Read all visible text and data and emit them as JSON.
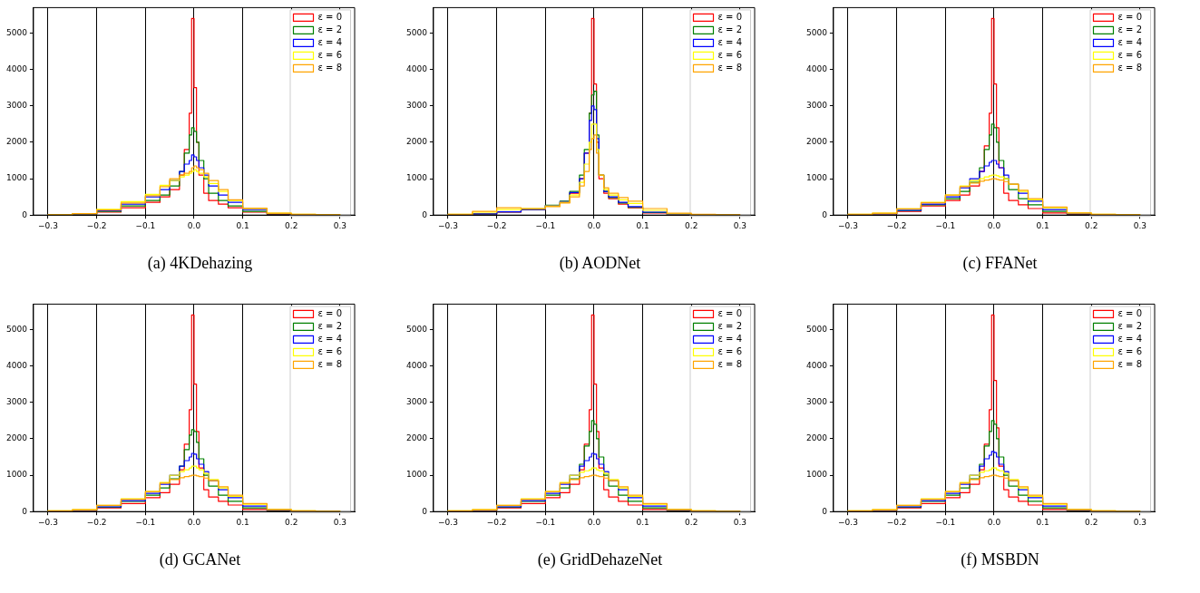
{
  "chart_data": [
    {
      "type": "histogram",
      "title": "(a)  4KDehazing",
      "bins": [
        -0.3,
        -0.25,
        -0.2,
        -0.15,
        -0.1,
        -0.07,
        -0.05,
        -0.03,
        -0.02,
        -0.01,
        -0.005,
        0,
        0.005,
        0.01,
        0.02,
        0.03,
        0.05,
        0.07,
        0.1,
        0.15,
        0.2,
        0.25,
        0.3
      ],
      "xlim": [
        -0.33,
        0.33
      ],
      "xticks": [
        {
          "value": -0.3,
          "label": "−0.3"
        },
        {
          "value": -0.2,
          "label": "−0.2"
        },
        {
          "value": -0.1,
          "label": "−0.1"
        },
        {
          "value": 0,
          "label": "0.0"
        },
        0.1,
        0.2,
        0.3
      ],
      "ylim": [
        0,
        5700
      ],
      "yticks": [
        0,
        1000,
        2000,
        3000,
        4000,
        5000
      ],
      "grid": "x",
      "legend": "top right",
      "series": [
        {
          "name": "ε = 0",
          "color": "#ff0000",
          "values": [
            10,
            30,
            80,
            200,
            350,
            500,
            700,
            1100,
            1800,
            2800,
            5400,
            3500,
            2000,
            1100,
            600,
            400,
            300,
            200,
            80,
            20,
            10,
            0
          ]
        },
        {
          "name": "ε = 2",
          "color": "#008000",
          "values": [
            10,
            30,
            100,
            250,
            400,
            550,
            800,
            1200,
            1700,
            2200,
            2400,
            2300,
            2000,
            1500,
            1000,
            600,
            400,
            250,
            100,
            30,
            10,
            0
          ]
        },
        {
          "name": "ε = 4",
          "color": "#0000ff",
          "values": [
            10,
            30,
            120,
            300,
            500,
            700,
            950,
            1200,
            1400,
            1500,
            1650,
            1600,
            1500,
            1300,
            1100,
            800,
            550,
            350,
            150,
            40,
            10,
            0
          ]
        },
        {
          "name": "ε = 6",
          "color": "#ffff00",
          "values": [
            10,
            40,
            160,
            370,
            570,
            820,
            950,
            1050,
            1100,
            1150,
            1200,
            1250,
            1200,
            1150,
            1050,
            870,
            650,
            400,
            180,
            50,
            20,
            10
          ]
        },
        {
          "name": "ε = 8",
          "color": "#ffa500",
          "values": [
            10,
            40,
            140,
            330,
            530,
            780,
            1000,
            1100,
            1150,
            1200,
            1300,
            1350,
            1300,
            1250,
            1150,
            950,
            700,
            420,
            190,
            50,
            20,
            10
          ]
        }
      ]
    },
    {
      "type": "histogram",
      "title": "(b)  AODNet",
      "bins": [
        -0.3,
        -0.25,
        -0.2,
        -0.15,
        -0.1,
        -0.07,
        -0.05,
        -0.03,
        -0.02,
        -0.01,
        -0.005,
        0,
        0.005,
        0.01,
        0.02,
        0.03,
        0.05,
        0.07,
        0.1,
        0.15,
        0.2,
        0.25,
        0.3
      ],
      "xlim": [
        -0.33,
        0.33
      ],
      "xticks": [
        {
          "value": -0.3,
          "label": "−0.3"
        },
        {
          "value": -0.2,
          "label": "−0.2"
        },
        {
          "value": -0.1,
          "label": "−0.1"
        },
        {
          "value": 0,
          "label": "0.0"
        },
        0.1,
        0.2,
        0.3
      ],
      "ylim": [
        0,
        5700
      ],
      "yticks": [
        0,
        1000,
        2000,
        3000,
        4000,
        5000
      ],
      "grid": "x",
      "legend": "top right",
      "series": [
        {
          "name": "ε = 0",
          "color": "#ff0000",
          "values": [
            10,
            30,
            80,
            150,
            250,
            350,
            600,
            1000,
            1700,
            2800,
            5400,
            3600,
            2000,
            1000,
            600,
            450,
            300,
            200,
            60,
            10,
            10,
            0
          ]
        },
        {
          "name": "ε = 2",
          "color": "#008000",
          "values": [
            10,
            30,
            90,
            160,
            270,
            380,
            650,
            1100,
            1800,
            2800,
            3300,
            3400,
            2200,
            1100,
            650,
            480,
            330,
            210,
            70,
            20,
            10,
            0
          ]
        },
        {
          "name": "ε = 4",
          "color": "#0000ff",
          "values": [
            10,
            30,
            90,
            160,
            260,
            370,
            620,
            1000,
            1700,
            2600,
            3000,
            2900,
            2100,
            1100,
            650,
            500,
            350,
            230,
            80,
            20,
            10,
            0
          ]
        },
        {
          "name": "ε = 6",
          "color": "#ffff00",
          "values": [
            20,
            80,
            150,
            180,
            250,
            350,
            550,
            900,
            1400,
            2000,
            2500,
            2500,
            1800,
            1100,
            700,
            550,
            420,
            320,
            130,
            30,
            10,
            0
          ]
        },
        {
          "name": "ε = 8",
          "color": "#ffa500",
          "values": [
            20,
            100,
            200,
            180,
            230,
            330,
            500,
            800,
            1200,
            1800,
            2100,
            2200,
            1700,
            1100,
            750,
            600,
            480,
            380,
            180,
            50,
            20,
            10
          ]
        }
      ]
    },
    {
      "type": "histogram",
      "title": "(c)  FFANet",
      "bins": [
        -0.3,
        -0.25,
        -0.2,
        -0.15,
        -0.1,
        -0.07,
        -0.05,
        -0.03,
        -0.02,
        -0.01,
        -0.005,
        0,
        0.005,
        0.01,
        0.02,
        0.03,
        0.05,
        0.07,
        0.1,
        0.15,
        0.2,
        0.25,
        0.3
      ],
      "xlim": [
        -0.33,
        0.33
      ],
      "xticks": [
        {
          "value": -0.3,
          "label": "−0.3"
        },
        {
          "value": -0.2,
          "label": "−0.2"
        },
        {
          "value": -0.1,
          "label": "−0.1"
        },
        {
          "value": 0,
          "label": "0.0"
        },
        0.1,
        0.2,
        0.3
      ],
      "ylim": [
        0,
        5700
      ],
      "yticks": [
        0,
        1000,
        2000,
        3000,
        4000,
        5000
      ],
      "grid": "x",
      "legend": "top right",
      "series": [
        {
          "name": "ε = 0",
          "color": "#ff0000",
          "values": [
            10,
            30,
            100,
            250,
            400,
            550,
            800,
            1200,
            1900,
            2800,
            5400,
            3600,
            2400,
            1300,
            600,
            400,
            280,
            180,
            60,
            20,
            10,
            0
          ]
        },
        {
          "name": "ε = 2",
          "color": "#008000",
          "values": [
            10,
            40,
            120,
            280,
            450,
            650,
            900,
            1300,
            1800,
            2200,
            2500,
            2400,
            2000,
            1500,
            1000,
            700,
            450,
            280,
            100,
            30,
            10,
            0
          ]
        },
        {
          "name": "ε = 4",
          "color": "#0000ff",
          "values": [
            10,
            40,
            130,
            300,
            500,
            750,
            1000,
            1200,
            1350,
            1450,
            1500,
            1500,
            1400,
            1300,
            1100,
            850,
            600,
            380,
            150,
            40,
            10,
            0
          ]
        },
        {
          "name": "ε = 6",
          "color": "#ffff00",
          "values": [
            20,
            50,
            170,
            350,
            550,
            800,
            950,
            1000,
            1050,
            1080,
            1100,
            1100,
            1080,
            1050,
            1000,
            850,
            650,
            420,
            200,
            60,
            20,
            10
          ]
        },
        {
          "name": "ε = 8",
          "color": "#ffa500",
          "values": [
            20,
            50,
            170,
            340,
            550,
            780,
            880,
            930,
            960,
            980,
            1000,
            1000,
            980,
            960,
            920,
            850,
            680,
            450,
            220,
            60,
            20,
            10
          ]
        }
      ]
    },
    {
      "type": "histogram",
      "title": "(d)  GCANet",
      "bins": [
        -0.3,
        -0.25,
        -0.2,
        -0.15,
        -0.1,
        -0.07,
        -0.05,
        -0.03,
        -0.02,
        -0.01,
        -0.005,
        0,
        0.005,
        0.01,
        0.02,
        0.03,
        0.05,
        0.07,
        0.1,
        0.15,
        0.2,
        0.25,
        0.3
      ],
      "xlim": [
        -0.33,
        0.33
      ],
      "xticks": [
        {
          "value": -0.3,
          "label": "−0.3"
        },
        {
          "value": -0.2,
          "label": "−0.2"
        },
        {
          "value": -0.1,
          "label": "−0.1"
        },
        {
          "value": 0,
          "label": "0.0"
        },
        0.1,
        0.2,
        0.3
      ],
      "ylim": [
        0,
        5700
      ],
      "yticks": [
        0,
        1000,
        2000,
        3000,
        4000,
        5000
      ],
      "grid": "x",
      "legend": "top right",
      "series": [
        {
          "name": "ε = 0",
          "color": "#ff0000",
          "values": [
            10,
            30,
            100,
            220,
            380,
            520,
            750,
            1150,
            1850,
            2800,
            5400,
            3500,
            2200,
            1200,
            600,
            400,
            280,
            180,
            60,
            20,
            10,
            0
          ]
        },
        {
          "name": "ε = 2",
          "color": "#008000",
          "values": [
            10,
            40,
            120,
            280,
            450,
            650,
            900,
            1250,
            1700,
            2100,
            2250,
            2200,
            1900,
            1450,
            1000,
            700,
            450,
            280,
            100,
            30,
            10,
            0
          ]
        },
        {
          "name": "ε = 4",
          "color": "#0000ff",
          "values": [
            10,
            40,
            130,
            300,
            500,
            750,
            1000,
            1250,
            1400,
            1500,
            1600,
            1580,
            1450,
            1300,
            1100,
            850,
            600,
            380,
            150,
            40,
            10,
            0
          ]
        },
        {
          "name": "ε = 6",
          "color": "#ffff00",
          "values": [
            20,
            50,
            170,
            350,
            550,
            800,
            1000,
            1100,
            1150,
            1200,
            1250,
            1250,
            1200,
            1150,
            1050,
            880,
            650,
            420,
            200,
            60,
            20,
            10
          ]
        },
        {
          "name": "ε = 8",
          "color": "#ffa500",
          "values": [
            20,
            50,
            170,
            340,
            550,
            780,
            880,
            930,
            960,
            980,
            1000,
            1000,
            980,
            960,
            920,
            850,
            680,
            450,
            220,
            60,
            20,
            10
          ]
        }
      ]
    },
    {
      "type": "histogram",
      "title": "(e)  GridDehazeNet",
      "bins": [
        -0.3,
        -0.25,
        -0.2,
        -0.15,
        -0.1,
        -0.07,
        -0.05,
        -0.03,
        -0.02,
        -0.01,
        -0.005,
        0,
        0.005,
        0.01,
        0.02,
        0.03,
        0.05,
        0.07,
        0.1,
        0.15,
        0.2,
        0.25,
        0.3
      ],
      "xlim": [
        -0.33,
        0.33
      ],
      "xticks": [
        {
          "value": -0.3,
          "label": "−0.3"
        },
        {
          "value": -0.2,
          "label": "−0.2"
        },
        {
          "value": -0.1,
          "label": "−0.1"
        },
        {
          "value": 0,
          "label": "0.0"
        },
        0.1,
        0.2,
        0.3
      ],
      "ylim": [
        0,
        5700
      ],
      "yticks": [
        0,
        1000,
        2000,
        3000,
        4000,
        5000
      ],
      "grid": "x",
      "legend": "top right",
      "series": [
        {
          "name": "ε = 0",
          "color": "#ff0000",
          "values": [
            10,
            30,
            100,
            220,
            380,
            520,
            750,
            1150,
            1850,
            2800,
            5400,
            3500,
            2200,
            1200,
            600,
            400,
            280,
            180,
            60,
            20,
            10,
            0
          ]
        },
        {
          "name": "ε = 2",
          "color": "#008000",
          "values": [
            10,
            40,
            120,
            280,
            450,
            650,
            900,
            1300,
            1800,
            2200,
            2500,
            2400,
            2000,
            1500,
            1000,
            700,
            450,
            280,
            100,
            30,
            10,
            0
          ]
        },
        {
          "name": "ε = 4",
          "color": "#0000ff",
          "values": [
            10,
            40,
            130,
            300,
            500,
            750,
            1000,
            1250,
            1400,
            1500,
            1600,
            1580,
            1450,
            1300,
            1100,
            850,
            600,
            380,
            150,
            40,
            10,
            0
          ]
        },
        {
          "name": "ε = 6",
          "color": "#ffff00",
          "values": [
            20,
            50,
            170,
            350,
            550,
            800,
            1000,
            1080,
            1120,
            1150,
            1200,
            1200,
            1150,
            1120,
            1050,
            880,
            650,
            420,
            200,
            60,
            20,
            10
          ]
        },
        {
          "name": "ε = 8",
          "color": "#ffa500",
          "values": [
            20,
            50,
            170,
            340,
            550,
            780,
            880,
            930,
            960,
            980,
            1000,
            1000,
            980,
            960,
            920,
            850,
            680,
            450,
            220,
            60,
            20,
            10
          ]
        }
      ]
    },
    {
      "type": "histogram",
      "title": "(f)  MSBDN",
      "bins": [
        -0.3,
        -0.25,
        -0.2,
        -0.15,
        -0.1,
        -0.07,
        -0.05,
        -0.03,
        -0.02,
        -0.01,
        -0.005,
        0,
        0.005,
        0.01,
        0.02,
        0.03,
        0.05,
        0.07,
        0.1,
        0.15,
        0.2,
        0.25,
        0.3
      ],
      "xlim": [
        -0.33,
        0.33
      ],
      "xticks": [
        {
          "value": -0.3,
          "label": "−0.3"
        },
        {
          "value": -0.2,
          "label": "−0.2"
        },
        {
          "value": -0.1,
          "label": "−0.1"
        },
        {
          "value": 0,
          "label": "0.0"
        },
        0.1,
        0.2,
        0.3
      ],
      "ylim": [
        0,
        5700
      ],
      "yticks": [
        0,
        1000,
        2000,
        3000,
        4000,
        5000
      ],
      "grid": "x",
      "legend": "top right",
      "series": [
        {
          "name": "ε = 0",
          "color": "#ff0000",
          "values": [
            10,
            30,
            100,
            220,
            380,
            520,
            750,
            1150,
            1850,
            2800,
            5400,
            3600,
            2300,
            1250,
            600,
            400,
            280,
            180,
            60,
            20,
            10,
            0
          ]
        },
        {
          "name": "ε = 2",
          "color": "#008000",
          "values": [
            10,
            40,
            120,
            280,
            450,
            650,
            900,
            1300,
            1800,
            2200,
            2500,
            2400,
            2000,
            1500,
            1000,
            700,
            450,
            280,
            100,
            30,
            10,
            0
          ]
        },
        {
          "name": "ε = 4",
          "color": "#0000ff",
          "values": [
            10,
            40,
            130,
            300,
            500,
            750,
            1000,
            1250,
            1450,
            1550,
            1650,
            1620,
            1500,
            1300,
            1100,
            850,
            600,
            380,
            150,
            40,
            10,
            0
          ]
        },
        {
          "name": "ε = 6",
          "color": "#ffff00",
          "values": [
            20,
            50,
            170,
            350,
            550,
            800,
            1000,
            1080,
            1120,
            1150,
            1200,
            1200,
            1150,
            1120,
            1050,
            880,
            650,
            420,
            200,
            60,
            20,
            10
          ]
        },
        {
          "name": "ε = 8",
          "color": "#ffa500",
          "values": [
            20,
            50,
            170,
            340,
            550,
            780,
            880,
            930,
            960,
            980,
            1000,
            1000,
            980,
            960,
            920,
            850,
            680,
            450,
            220,
            60,
            20,
            10
          ]
        }
      ]
    }
  ]
}
